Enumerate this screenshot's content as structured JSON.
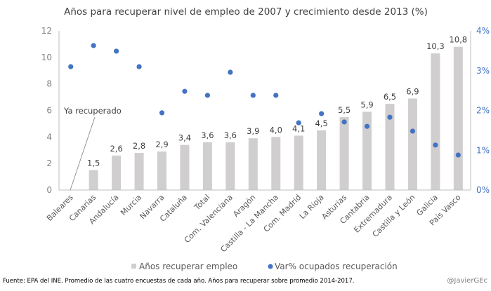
{
  "chart_data": {
    "type": "bar",
    "title": "Años para recuperar nivel de empleo de 2007  y crecimiento desde 2013 (%)",
    "categories": [
      "Baleares",
      "Canarias",
      "Andalucía",
      "Murcia",
      "Navarra",
      "Cataluña",
      "Total",
      "Com. Valenciana",
      "Aragón",
      "Castilla - La Mancha",
      "Com. Madrid",
      "La Rioja",
      "Asturias",
      "Cantabria",
      "Extremadura",
      "Castilla y León",
      "Galicia",
      "País Vasco"
    ],
    "series": [
      {
        "name": "Años recuperar  empleo",
        "type": "bar",
        "axis": "left",
        "color": "#D0CECE",
        "values": [
          0,
          1.5,
          2.6,
          2.8,
          2.9,
          3.4,
          3.6,
          3.6,
          3.9,
          4.0,
          4.1,
          4.5,
          5.5,
          5.9,
          6.5,
          6.9,
          10.3,
          10.8
        ],
        "labels": [
          "",
          "1,5",
          "2,6",
          "2,8",
          "2,9",
          "3,4",
          "3,6",
          "3,6",
          "3,9",
          "4,0",
          "4,1",
          "4,5",
          "5,5",
          "5,9",
          "6,5",
          "6,9",
          "10,3",
          "10,8"
        ]
      },
      {
        "name": "Var% ocupados recuperación",
        "type": "scatter",
        "axis": "right",
        "color": "#4472C4",
        "values": [
          3.1,
          3.63,
          3.49,
          3.1,
          1.94,
          2.48,
          2.38,
          2.96,
          2.38,
          2.38,
          1.69,
          1.92,
          1.71,
          1.6,
          1.83,
          1.48,
          1.13,
          0.88
        ]
      }
    ],
    "y_left": {
      "ylim": [
        0,
        12
      ],
      "ticks": [
        "0",
        "2",
        "4",
        "6",
        "8",
        "10",
        "12"
      ]
    },
    "y_right": {
      "ylim": [
        0,
        4
      ],
      "ticks": [
        "0%",
        "1%",
        "2%",
        "3%",
        "4%"
      ]
    },
    "annotation": "Ya recuperado",
    "legend": {
      "position": "bottom",
      "entries": [
        "Años recuperar  empleo",
        "Var% ocupados recuperación"
      ]
    },
    "grid": false,
    "source": "Fuente: EPA del INE. Promedio de las cuatro encuestas de cada año. Años para recuperar sobre promedio 2014-2017.",
    "credit": "@JavierGEc"
  }
}
